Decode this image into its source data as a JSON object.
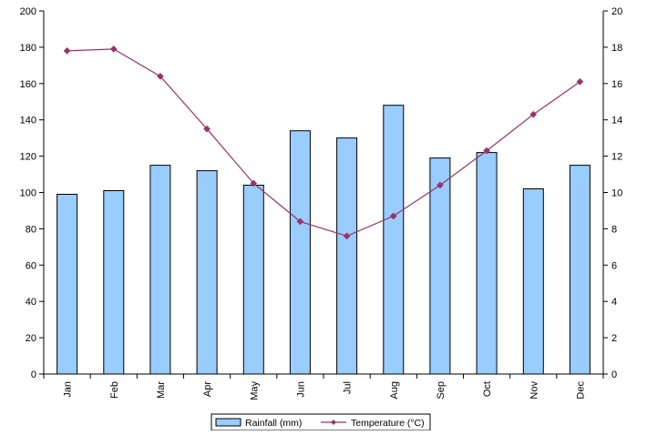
{
  "chart_data": {
    "type": "bar",
    "categories": [
      "Jan",
      "Feb",
      "Mar",
      "Apr",
      "May",
      "Jun",
      "Jul",
      "Aug",
      "Sep",
      "Oct",
      "Nov",
      "Dec"
    ],
    "series": [
      {
        "name": "Rainfall (mm)",
        "type": "bar",
        "axis": "left",
        "color": "#99ccff",
        "values": [
          99,
          101,
          115,
          112,
          104,
          134,
          130,
          148,
          119,
          122,
          102,
          115
        ]
      },
      {
        "name": "Temperature (°C)",
        "type": "line",
        "axis": "right",
        "color": "#993366",
        "values": [
          17.8,
          17.9,
          16.4,
          13.5,
          10.5,
          8.4,
          7.6,
          8.7,
          10.4,
          12.3,
          14.3,
          16.1
        ]
      }
    ],
    "title": "",
    "xlabel": "",
    "ylabel": "",
    "ylim": [
      0,
      200
    ],
    "y2lim": [
      0,
      20
    ],
    "yticks": [
      "0",
      "20",
      "40",
      "60",
      "80",
      "100",
      "120",
      "140",
      "160",
      "180",
      "200"
    ],
    "y2ticks": [
      "0",
      "2",
      "4",
      "6",
      "8",
      "10",
      "12",
      "14",
      "16",
      "18",
      "20"
    ],
    "grid": false,
    "legend_position": "bottom-center"
  }
}
